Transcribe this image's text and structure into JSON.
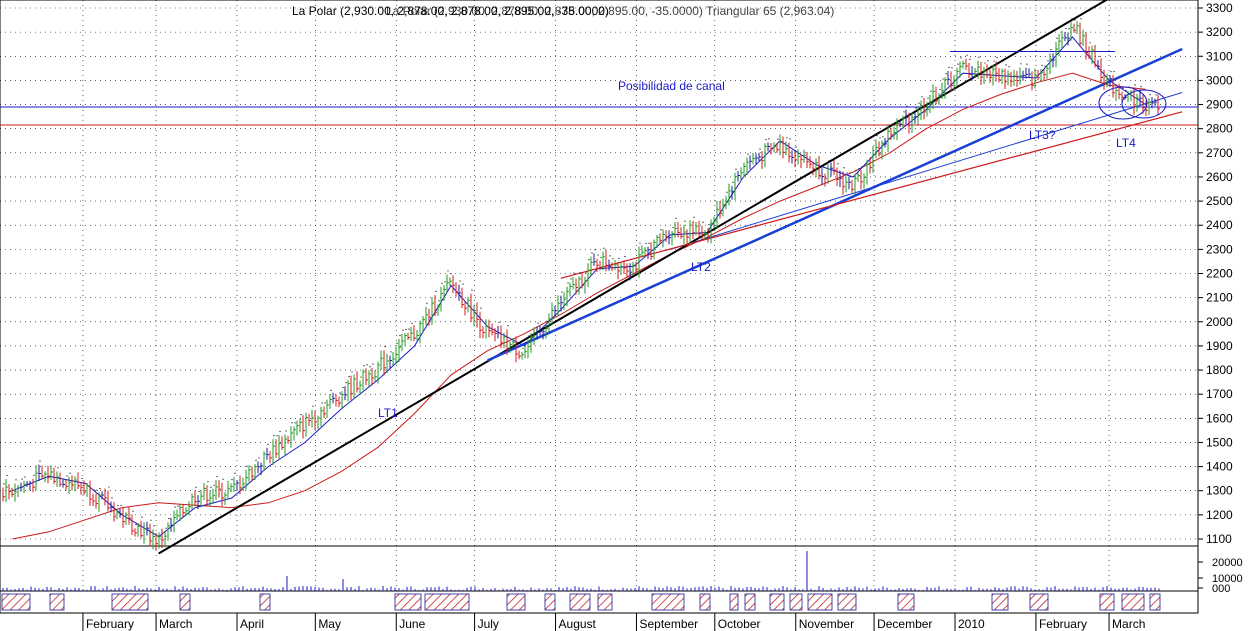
{
  "header": {
    "title": "La Polar (2,930.00, 2,878.00, 2,878.00, 2,895.00, -35.0000)",
    "overlay": "La Polar (2,930.00, 2,878.00, 2,878.00, 2,895.00, -35.0000) Triangular 65 (2,963.04)"
  },
  "chart_data": {
    "type": "line",
    "title": "La Polar (2,930.00, 2,878.00, 2,878.00, 2,895.00, -35.0000)",
    "subtitle": "Triangular 65 (2,963.04)",
    "xlabel": "",
    "ylabel": "",
    "ylim": [
      1040,
      3340
    ],
    "y_ticks": [
      1100,
      1200,
      1300,
      1400,
      1500,
      1600,
      1700,
      1800,
      1900,
      2000,
      2100,
      2200,
      2300,
      2400,
      2500,
      2600,
      2700,
      2800,
      2900,
      3000,
      3100,
      3200,
      3300
    ],
    "x_tick_labels": [
      "February",
      "March",
      "April",
      "May",
      "June",
      "July",
      "August",
      "September",
      "October",
      "November",
      "December",
      "2010",
      "February",
      "March"
    ],
    "volume_ticks": [
      "20000",
      "10000",
      "000"
    ],
    "annotations": {
      "canal": "Posibilidad de canal",
      "lt1": "LT1",
      "lt2": "LT2",
      "lt3": "LT3?",
      "lt4": "LT4"
    },
    "horizontal_levels": [
      {
        "name": "blue level",
        "value": 2890
      },
      {
        "name": "red level",
        "value": 2815
      }
    ],
    "series": [
      {
        "name": "close",
        "x": [
          "2009-01-05",
          "2009-01-19",
          "2009-02-02",
          "2009-02-16",
          "2009-03-02",
          "2009-03-16",
          "2009-03-30",
          "2009-04-13",
          "2009-04-27",
          "2009-05-11",
          "2009-05-25",
          "2009-06-08",
          "2009-06-22",
          "2009-07-06",
          "2009-07-20",
          "2009-08-03",
          "2009-08-17",
          "2009-08-31",
          "2009-09-14",
          "2009-09-28",
          "2009-10-12",
          "2009-10-26",
          "2009-11-09",
          "2009-11-23",
          "2009-12-07",
          "2009-12-21",
          "2010-01-04",
          "2010-01-18",
          "2010-02-01",
          "2010-02-15",
          "2010-03-01",
          "2010-03-15"
        ],
        "values": [
          1300,
          1370,
          1310,
          1190,
          1090,
          1280,
          1300,
          1450,
          1580,
          1700,
          1810,
          1950,
          2160,
          1950,
          1870,
          2080,
          2250,
          2230,
          2380,
          2370,
          2650,
          2730,
          2640,
          2560,
          2780,
          2900,
          3050,
          3020,
          3000,
          3230,
          2980,
          2895
        ]
      },
      {
        "name": "Triangular 65",
        "values": [
          1100,
          1130,
          1180,
          1230,
          1250,
          1240,
          1230,
          1250,
          1300,
          1380,
          1480,
          1620,
          1780,
          1880,
          1950,
          2030,
          2120,
          2200,
          2280,
          2350,
          2430,
          2500,
          2560,
          2620,
          2700,
          2800,
          2880,
          2940,
          2990,
          3030,
          2980,
          2963
        ]
      },
      {
        "name": "short average",
        "values": [
          1300,
          1360,
          1330,
          1200,
          1110,
          1230,
          1270,
          1400,
          1500,
          1640,
          1760,
          1900,
          2150,
          1980,
          1900,
          2050,
          2220,
          2230,
          2360,
          2370,
          2600,
          2750,
          2650,
          2600,
          2760,
          2880,
          3030,
          3020,
          3010,
          3180,
          3000,
          2900
        ]
      }
    ],
    "trendlines": [
      {
        "name": "LT1",
        "from": [
          "2009-03-02",
          1040
        ],
        "to": [
          "2010-03-01",
          3340
        ]
      },
      {
        "name": "LT2",
        "from": [
          "2009-07-06",
          1840
        ],
        "to": [
          "2010-03-29",
          3130
        ]
      },
      {
        "name": "LT3?",
        "from": [
          "2009-09-14",
          2300
        ],
        "to": [
          "2010-03-29",
          2950
        ]
      },
      {
        "name": "LT4",
        "from": [
          "2009-08-03",
          2180
        ],
        "to": [
          "2010-03-29",
          2870
        ]
      }
    ]
  },
  "colors": {
    "up": "#1f9a1f",
    "down": "#d01818",
    "neutral": "#1a1a99",
    "average_blue": "#1a1acc",
    "average_red": "#cc1a1a",
    "trend_black": "#000000",
    "trend_blue": "#1a3fd6",
    "grid": "#000000",
    "background": "#ffffff"
  }
}
